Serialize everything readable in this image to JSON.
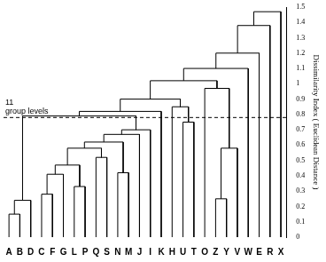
{
  "chart_data": {
    "type": "dendrogram",
    "y_label": "Dissimilarity Index ( Euclidean Distance )",
    "ylim": [
      0,
      1.5
    ],
    "yticks": [
      0,
      0.1,
      0.2,
      0.3,
      0.4,
      0.5,
      0.6,
      0.7,
      0.8,
      0.9,
      1,
      1.1,
      1.2,
      1.3,
      1.4,
      1.5
    ],
    "grid": false,
    "annotation": {
      "text": [
        "11",
        "group levels"
      ],
      "value": 0.78,
      "line_style": "dashed"
    },
    "color": "#000000",
    "tree": {
      "height": 1.47,
      "children": [
        {
          "height": 1.38,
          "children": [
            {
              "height": 1.2,
              "children": [
                {
                  "height": 1.1,
                  "children": [
                    {
                      "height": 1.02,
                      "children": [
                        {
                          "height": 0.9,
                          "children": [
                            {
                              "height": 0.82,
                              "children": [
                                {
                                  "height": 0.79,
                                  "children": [
                                    {
                                      "height": 0.24,
                                      "children": [
                                        {
                                          "height": 0.15,
                                          "children": [
                                            "A",
                                            "B"
                                          ]
                                        },
                                        "D"
                                      ]
                                    },
                                    {
                                      "height": 0.7,
                                      "children": [
                                        {
                                          "height": 0.67,
                                          "children": [
                                            {
                                              "height": 0.62,
                                              "children": [
                                                {
                                                  "height": 0.58,
                                                  "children": [
                                                    {
                                                      "height": 0.47,
                                                      "children": [
                                                        {
                                                          "height": 0.41,
                                                          "children": [
                                                            {
                                                              "height": 0.28,
                                                              "children": [
                                                                "C",
                                                                "F"
                                                              ]
                                                            },
                                                            "G"
                                                          ]
                                                        },
                                                        {
                                                          "height": 0.33,
                                                          "children": [
                                                            "L",
                                                            "P"
                                                          ]
                                                        }
                                                      ]
                                                    },
                                                    {
                                                      "height": 0.52,
                                                      "children": [
                                                        "Q",
                                                        "S"
                                                      ]
                                                    }
                                                  ]
                                                },
                                                {
                                                  "height": 0.42,
                                                  "children": [
                                                    "N",
                                                    "M"
                                                  ]
                                                }
                                              ]
                                            },
                                            "J"
                                          ]
                                        },
                                        "I"
                                      ]
                                    }
                                  ]
                                },
                                "K"
                              ]
                            },
                            {
                              "height": 0.85,
                              "children": [
                                "H",
                                {
                                  "height": 0.75,
                                  "children": [
                                    "U",
                                    "T"
                                  ]
                                }
                              ]
                            }
                          ]
                        },
                        {
                          "height": 0.97,
                          "children": [
                            "O",
                            {
                              "height": 0.58,
                              "children": [
                                {
                                  "height": 0.25,
                                  "children": [
                                    "Z",
                                    "Y"
                                  ]
                                },
                                "V"
                              ]
                            }
                          ]
                        }
                      ]
                    },
                    "W"
                  ]
                },
                "E"
              ]
            },
            "R"
          ]
        },
        "X"
      ]
    }
  }
}
